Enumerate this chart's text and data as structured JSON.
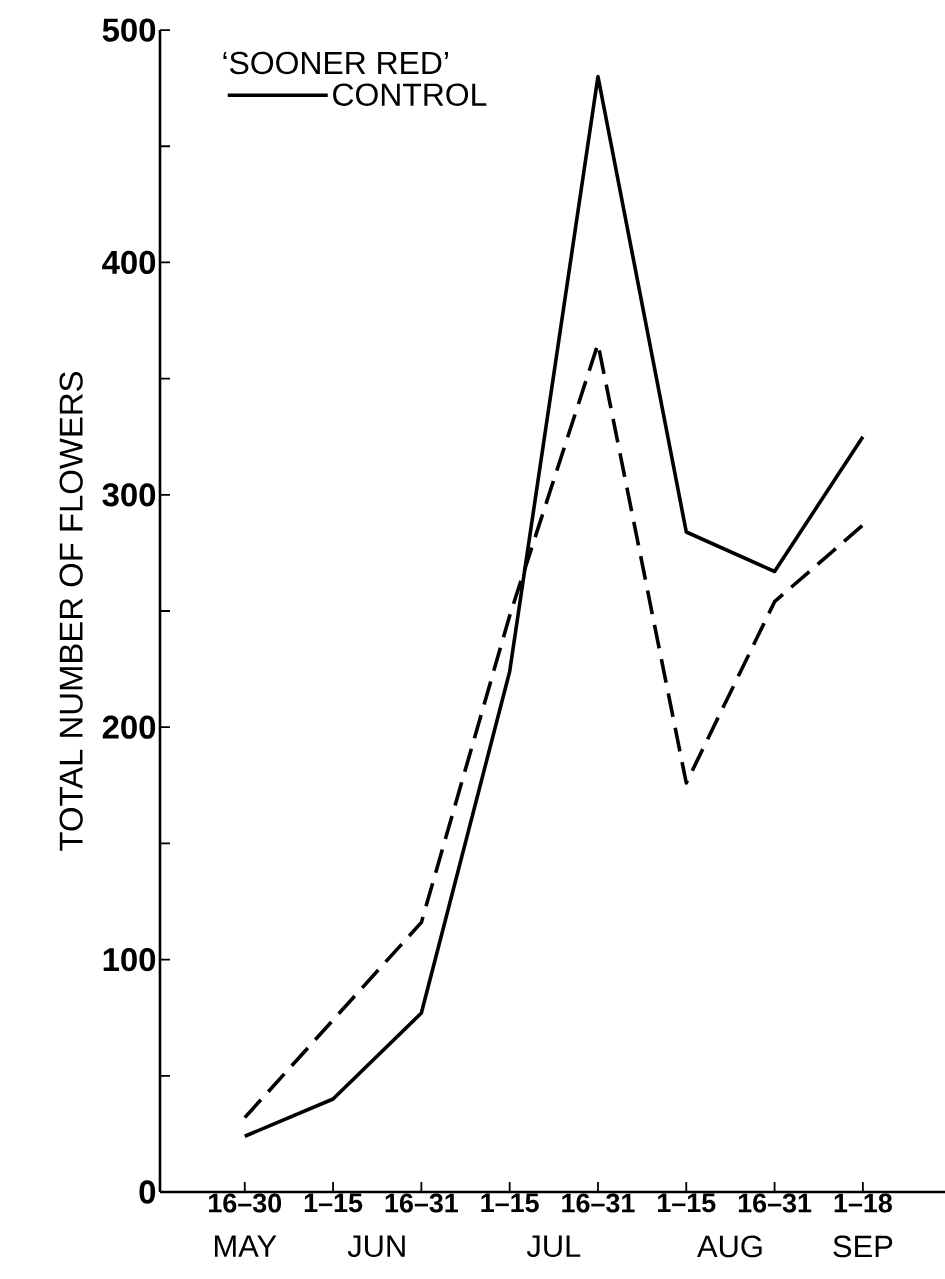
{
  "chart_data": {
    "type": "line",
    "ylabel": "TOTAL NUMBER OF FLOWERS",
    "legend_title": "‘SOONER RED’",
    "categories": [
      "16–30",
      "1–15",
      "16–31",
      "1–15",
      "16–31",
      "1–15",
      "16–31",
      "1–18"
    ],
    "annotations": [
      "MAY",
      "JUN",
      "JUL",
      "AUG",
      "SEP"
    ],
    "series": [
      {
        "name": "CONTROL",
        "color": "#000000",
        "line_style": "solid",
        "values": [
          24,
          40,
          77,
          224,
          480,
          284,
          267,
          325
        ]
      },
      {
        "color": "#000000",
        "line_style": "dashed",
        "values": [
          32,
          74,
          116,
          248,
          365,
          176,
          254,
          287
        ]
      }
    ],
    "ylim": [
      0,
      500
    ],
    "yticks": [
      0,
      {
        "value": 50,
        "label": null
      },
      100,
      {
        "value": 150,
        "label": null
      },
      200,
      {
        "value": 250,
        "label": null
      },
      300,
      {
        "value": 350,
        "label": null
      },
      400,
      {
        "value": 450,
        "label": null
      },
      500
    ],
    "legend": "top left",
    "marker": "none",
    "grid": false
  }
}
